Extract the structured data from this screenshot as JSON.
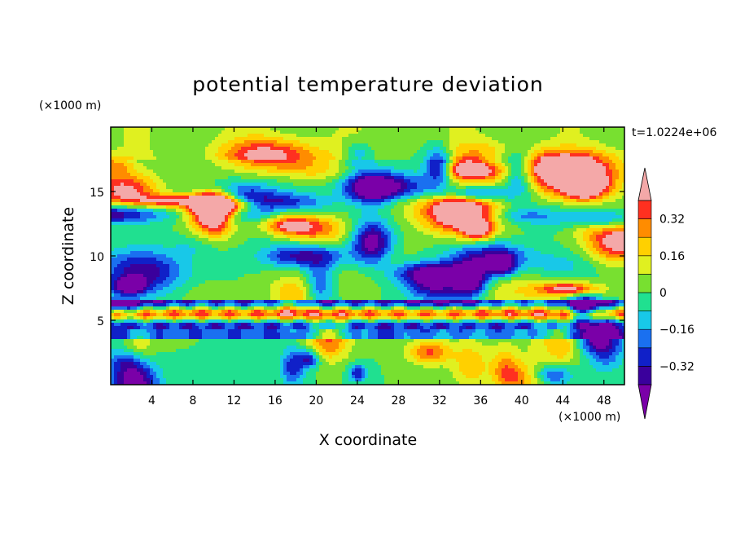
{
  "chart_data": {
    "type": "heatmap",
    "title": "potential temperature deviation",
    "xlabel": "X coordinate",
    "ylabel": "Z coordinate",
    "x_unit": "(×1000 m)",
    "y_unit": "(×1000 m)",
    "time_label": "t=1.0224e+06",
    "xlim": [
      0,
      50
    ],
    "ylim": [
      0,
      20
    ],
    "x_ticks": [
      4,
      8,
      12,
      16,
      20,
      24,
      28,
      32,
      36,
      40,
      44,
      48
    ],
    "y_ticks": [
      5,
      10,
      15
    ],
    "colorbar": {
      "levels": [
        -0.4,
        -0.32,
        -0.24,
        -0.16,
        -0.08,
        0,
        0.08,
        0.16,
        0.24,
        0.32,
        0.4
      ],
      "tick_labels": [
        "0.32",
        "0.16",
        "0",
        "−0.16",
        "−0.32"
      ],
      "tick_values": [
        0.32,
        0.16,
        0,
        -0.16,
        -0.32
      ],
      "colors": [
        "#7a00a8",
        "#3a009c",
        "#1020c8",
        "#1a70f0",
        "#18c8e8",
        "#20e090",
        "#78e030",
        "#e0f020",
        "#ffd000",
        "#ff8c00",
        "#ff3020",
        "#f4a8a8"
      ],
      "extend": "both"
    }
  }
}
